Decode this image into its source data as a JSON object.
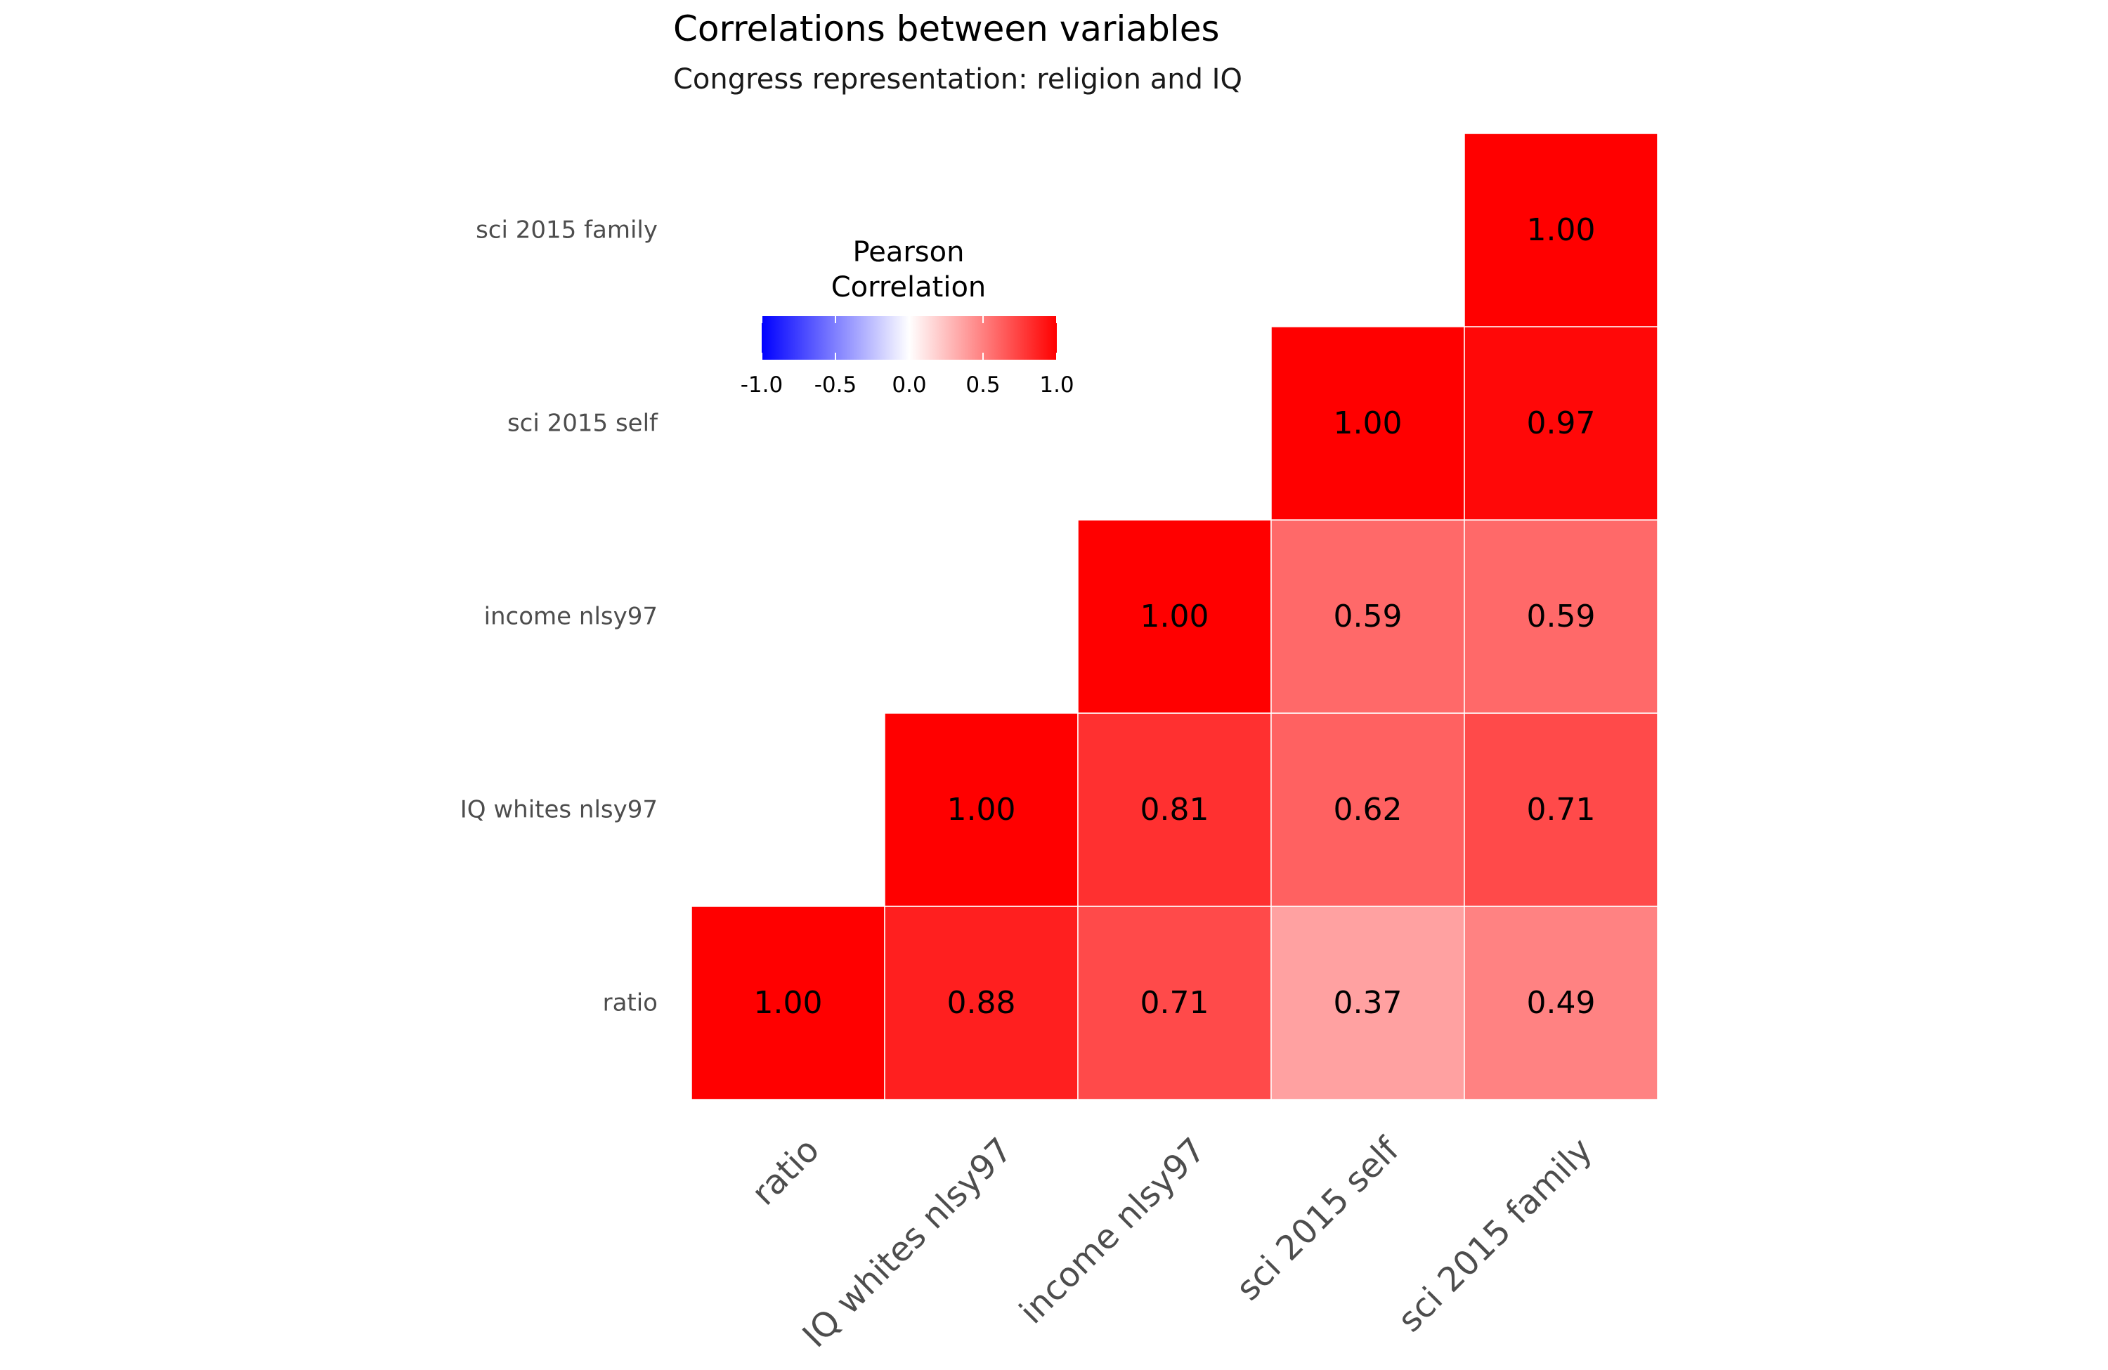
{
  "chart_data": {
    "type": "heatmap",
    "title": "Correlations between variables",
    "subtitle": "Congress representation: religion and IQ",
    "variables": [
      "ratio",
      "IQ whites nlsy97",
      "income nlsy97",
      "sci 2015 self",
      "sci 2015 family"
    ],
    "cells": [
      {
        "x": "ratio",
        "y": "ratio",
        "value": 1.0,
        "label": "1.00"
      },
      {
        "x": "IQ whites nlsy97",
        "y": "ratio",
        "value": 0.88,
        "label": "0.88"
      },
      {
        "x": "income nlsy97",
        "y": "ratio",
        "value": 0.71,
        "label": "0.71"
      },
      {
        "x": "sci 2015 self",
        "y": "ratio",
        "value": 0.37,
        "label": "0.37"
      },
      {
        "x": "sci 2015 family",
        "y": "ratio",
        "value": 0.49,
        "label": "0.49"
      },
      {
        "x": "IQ whites nlsy97",
        "y": "IQ whites nlsy97",
        "value": 1.0,
        "label": "1.00"
      },
      {
        "x": "income nlsy97",
        "y": "IQ whites nlsy97",
        "value": 0.81,
        "label": "0.81"
      },
      {
        "x": "sci 2015 self",
        "y": "IQ whites nlsy97",
        "value": 0.62,
        "label": "0.62"
      },
      {
        "x": "sci 2015 family",
        "y": "IQ whites nlsy97",
        "value": 0.71,
        "label": "0.71"
      },
      {
        "x": "income nlsy97",
        "y": "income nlsy97",
        "value": 1.0,
        "label": "1.00"
      },
      {
        "x": "sci 2015 self",
        "y": "income nlsy97",
        "value": 0.59,
        "label": "0.59"
      },
      {
        "x": "sci 2015 family",
        "y": "income nlsy97",
        "value": 0.59,
        "label": "0.59"
      },
      {
        "x": "sci 2015 self",
        "y": "sci 2015 self",
        "value": 1.0,
        "label": "1.00"
      },
      {
        "x": "sci 2015 family",
        "y": "sci 2015 self",
        "value": 0.97,
        "label": "0.97"
      },
      {
        "x": "sci 2015 family",
        "y": "sci 2015 family",
        "value": 1.0,
        "label": "1.00"
      }
    ],
    "legend": {
      "title_line1": "Pearson",
      "title_line2": "Correlation",
      "limits": [
        -1,
        1
      ],
      "ticks": [
        {
          "value": -1.0,
          "label": "-1.0"
        },
        {
          "value": -0.5,
          "label": "-0.5"
        },
        {
          "value": 0.0,
          "label": "0.0"
        },
        {
          "value": 0.5,
          "label": "0.5"
        },
        {
          "value": 1.0,
          "label": "1.0"
        }
      ],
      "position": "top-left"
    },
    "colors": {
      "low": "#0000ff",
      "mid": "#ffffff",
      "high": "#ff0000"
    }
  }
}
